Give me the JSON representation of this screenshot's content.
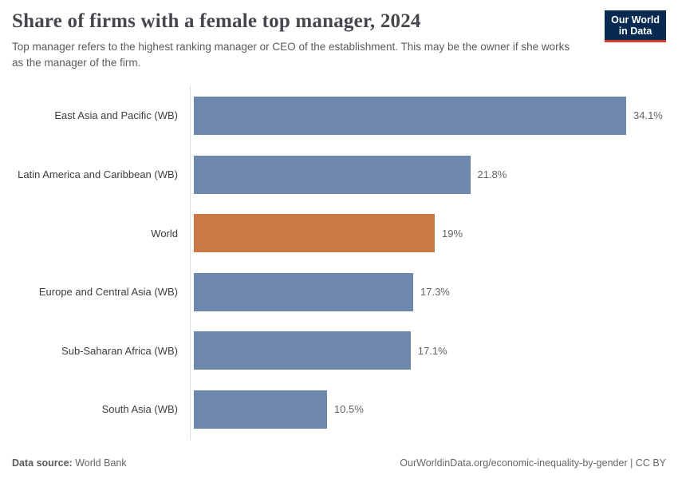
{
  "header": {
    "title": "Share of firms with a female top manager, 2024",
    "subtitle": "Top manager refers to the highest ranking manager or CEO of the establishment. This may be the owner if she works as the manager of the firm.",
    "logo": {
      "line1": "Our World",
      "line2": "in Data",
      "bg_color": "#062a51",
      "accent_color": "#d93a2b"
    }
  },
  "chart_data": {
    "type": "bar",
    "orientation": "horizontal",
    "title": "Share of firms with a female top manager, 2024",
    "categories": [
      "East Asia and Pacific (WB)",
      "Latin America and Caribbean (WB)",
      "World",
      "Europe and Central Asia (WB)",
      "Sub-Saharan Africa (WB)",
      "South Asia (WB)"
    ],
    "values": [
      34.1,
      21.8,
      19,
      17.3,
      17.1,
      10.5
    ],
    "value_labels": [
      "34.1%",
      "21.8%",
      "19%",
      "17.3%",
      "17.1%",
      "10.5%"
    ],
    "unit": "%",
    "xlim": [
      0,
      34.1
    ],
    "grid": false,
    "legend": false,
    "bar_color": "#6e87ad",
    "highlight_category": "World",
    "highlight_color": "#c97a45",
    "axis_line_color": "#dcdcdc"
  },
  "footer": {
    "source_label": "Data source:",
    "source_value": "World Bank",
    "right_text": "OurWorldinData.org/economic-inequality-by-gender | CC BY"
  }
}
